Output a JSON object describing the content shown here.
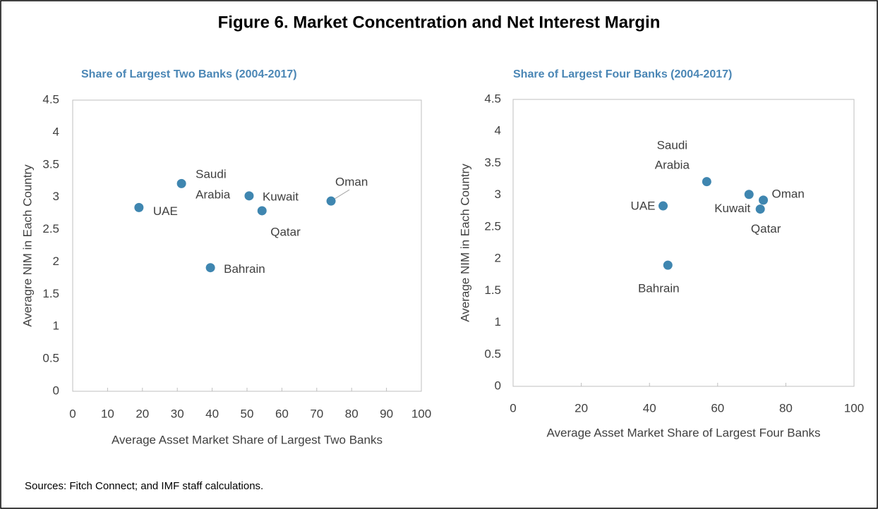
{
  "title": "Figure 6. Market Concentration and Net Interest Margin",
  "source": "Sources: Fitch Connect; and IMF staff calculations.",
  "chart_data": [
    {
      "type": "scatter",
      "title": "Share of Largest Two Banks (2004-2017)",
      "x_label": "Average Asset Market Share of Largest Two Banks",
      "y_label": "Averagre NIM in Each Country",
      "color": "#3f86b0",
      "labels": [
        "UAE",
        "Saudi Arabia",
        "Kuwait",
        "Qatar",
        "Oman",
        "Bahrain"
      ],
      "x": [
        19.0,
        31.2,
        50.6,
        54.3,
        74.1,
        39.5
      ],
      "values": [
        2.84,
        3.21,
        3.02,
        2.79,
        2.94,
        1.91
      ],
      "xlim": [
        0,
        100
      ],
      "xticks": [
        0,
        10,
        20,
        30,
        40,
        50,
        60,
        70,
        80,
        90,
        100
      ],
      "ylim": [
        0,
        4.5
      ],
      "yticks": [
        0,
        0.5,
        1,
        1.5,
        2,
        2.5,
        3,
        3.5,
        4,
        4.5
      ]
    },
    {
      "type": "scatter",
      "title": "Share of Largest Four Banks (2004-2017)",
      "x_label": "Average Asset Market Share of Largest Four Banks",
      "y_label": "Average NIM in Each Country",
      "color": "#3f86b0",
      "labels": [
        "UAE",
        "Saudi Arabia",
        "Kuwait",
        "Qatar",
        "Oman",
        "Bahrain"
      ],
      "x": [
        44.0,
        56.8,
        69.2,
        72.5,
        73.4,
        45.4
      ],
      "values": [
        2.83,
        3.21,
        3.01,
        2.78,
        2.92,
        1.9
      ],
      "xlim": [
        0,
        100
      ],
      "xticks": [
        0,
        20,
        40,
        60,
        80,
        100
      ],
      "ylim": [
        0,
        4.5
      ],
      "yticks": [
        0,
        0.5,
        1,
        1.5,
        2,
        2.5,
        3,
        3.5,
        4,
        4.5
      ]
    }
  ]
}
